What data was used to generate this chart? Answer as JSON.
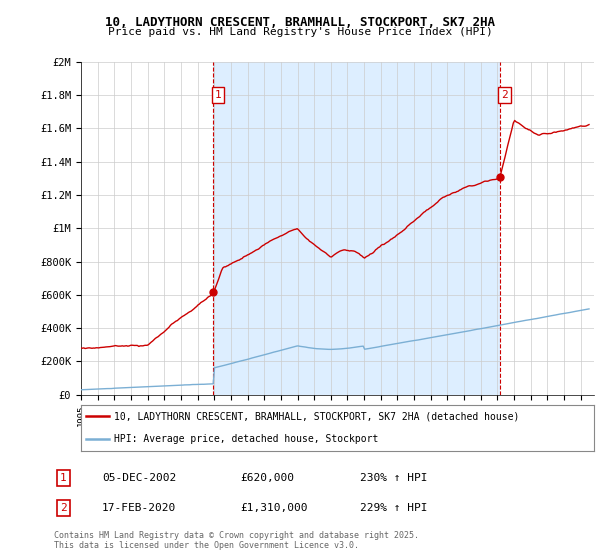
{
  "title1": "10, LADYTHORN CRESCENT, BRAMHALL, STOCKPORT, SK7 2HA",
  "title2": "Price paid vs. HM Land Registry's House Price Index (HPI)",
  "legend_line1": "10, LADYTHORN CRESCENT, BRAMHALL, STOCKPORT, SK7 2HA (detached house)",
  "legend_line2": "HPI: Average price, detached house, Stockport",
  "annotation1_label": "1",
  "annotation1_date": "05-DEC-2002",
  "annotation1_price": "£620,000",
  "annotation1_hpi": "230% ↑ HPI",
  "annotation2_label": "2",
  "annotation2_date": "17-FEB-2020",
  "annotation2_price": "£1,310,000",
  "annotation2_hpi": "229% ↑ HPI",
  "footnote": "Contains HM Land Registry data © Crown copyright and database right 2025.\nThis data is licensed under the Open Government Licence v3.0.",
  "hpi_color": "#7bafd4",
  "price_color": "#cc0000",
  "vline_color": "#cc0000",
  "shade_color": "#ddeeff",
  "background_color": "#ffffff",
  "grid_color": "#cccccc",
  "ylim": [
    0,
    2000000
  ],
  "yticks": [
    0,
    200000,
    400000,
    600000,
    800000,
    1000000,
    1200000,
    1400000,
    1600000,
    1800000,
    2000000
  ],
  "ytick_labels": [
    "£0",
    "£200K",
    "£400K",
    "£600K",
    "£800K",
    "£1M",
    "£1.2M",
    "£1.4M",
    "£1.6M",
    "£1.8M",
    "£2M"
  ],
  "sale1_year": 2002.92,
  "sale1_price": 620000,
  "sale2_year": 2020.13,
  "sale2_price": 1310000
}
